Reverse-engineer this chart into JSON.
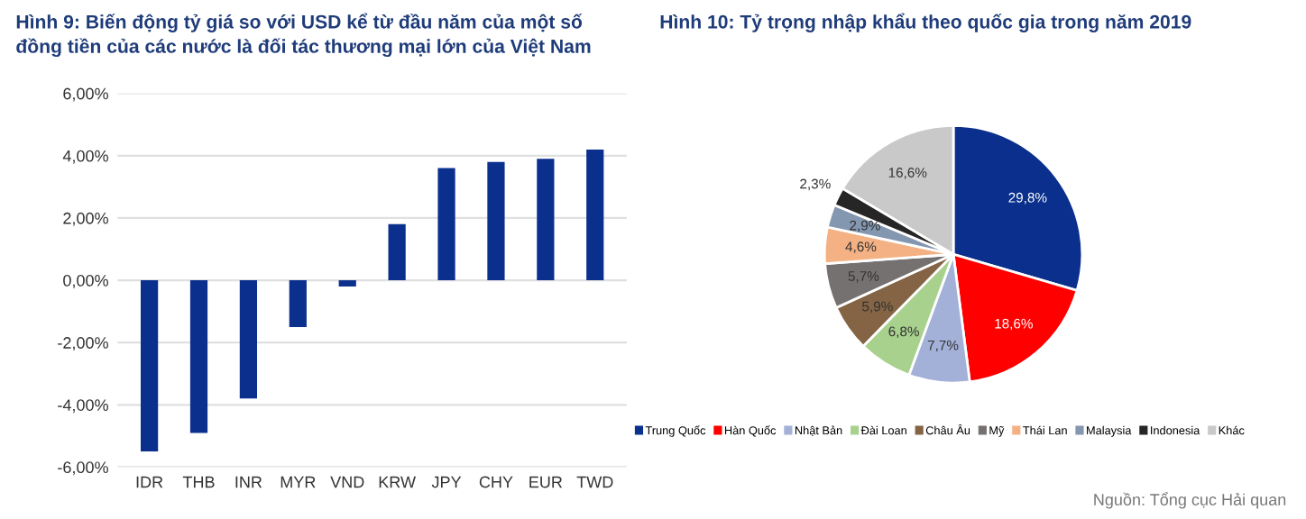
{
  "chart_data": [
    {
      "type": "bar",
      "title": "Hình 9: Biến động tỷ giá so với USD kể từ đầu năm của một số\nđồng tiền của các nước là đối tác thương mại lớn của Việt Nam",
      "categories": [
        "IDR",
        "THB",
        "INR",
        "MYR",
        "VND",
        "KRW",
        "JPY",
        "CHY",
        "EUR",
        "TWD"
      ],
      "values": [
        -5.5,
        -4.9,
        -3.8,
        -1.5,
        -0.2,
        1.8,
        3.6,
        3.8,
        3.9,
        4.2
      ],
      "color": "#0a2f8c",
      "ylim": [
        -6,
        6
      ],
      "yticks": [
        {
          "value": -6,
          "label": "-6,00%"
        },
        {
          "value": -4,
          "label": "-4,00%"
        },
        {
          "value": -2,
          "label": "-2,00%"
        },
        {
          "value": 0,
          "label": "0,00%"
        },
        {
          "value": 2,
          "label": "2,00%"
        },
        {
          "value": 4,
          "label": "4,00%"
        },
        {
          "value": 6,
          "label": "6,00%"
        }
      ],
      "grid": "y"
    },
    {
      "type": "pie",
      "title": "Hình 10: Tỷ trọng nhập khẩu theo quốc gia trong năm 2019",
      "categories": [
        "Trung Quốc",
        "Hàn Quốc",
        "Nhật Bản",
        "Đài Loan",
        "Châu Âu",
        "Mỹ",
        "Thái Lan",
        "Malaysia",
        "Indonesia",
        "Khác"
      ],
      "values": [
        29.8,
        18.6,
        7.7,
        6.8,
        5.9,
        5.7,
        4.6,
        2.9,
        2.3,
        16.6
      ],
      "value_labels": [
        "29,8%",
        "18,6%",
        "7,7%",
        "6,8%",
        "5,9%",
        "5,7%",
        "4,6%",
        "2,9%",
        "2,3%",
        "16,6%"
      ],
      "colors": [
        "#0a2f8c",
        "#ff0000",
        "#a3b1d8",
        "#a8d18d",
        "#846445",
        "#767171",
        "#f4b183",
        "#8497b0",
        "#262626",
        "#c9c9c9"
      ],
      "legend": "bottom",
      "annotations": [
        "Nguồn: Tổng cục Hải quan"
      ]
    }
  ]
}
